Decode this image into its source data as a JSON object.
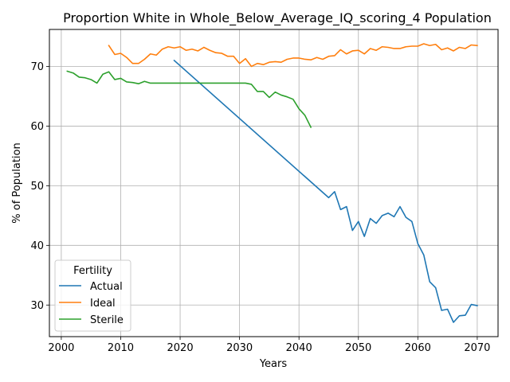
{
  "chart_data": {
    "type": "line",
    "title": "Proportion White in Whole_Below_Average_IQ_scoring_4 Population",
    "xlabel": "Years",
    "ylabel": "% of Population",
    "xlim": [
      1998,
      2073.5
    ],
    "ylim": [
      24.7,
      76.2
    ],
    "xticks": [
      2000,
      2010,
      2020,
      2030,
      2040,
      2050,
      2060,
      2070
    ],
    "yticks": [
      30,
      40,
      50,
      60,
      70
    ],
    "grid": true,
    "legend": {
      "title": "Fertility",
      "placement": "lower-left"
    },
    "series": [
      {
        "name": "Actual",
        "color": "#1f77b4",
        "x": [
          2019,
          2045,
          2046,
          2047,
          2048,
          2049,
          2050,
          2051,
          2052,
          2053,
          2054,
          2055,
          2056,
          2057,
          2058,
          2059,
          2060,
          2061,
          2062,
          2063,
          2064,
          2065,
          2066,
          2067,
          2068,
          2069,
          2070
        ],
        "y": [
          71.0,
          48.0,
          49.0,
          46.0,
          46.5,
          42.5,
          44.0,
          41.5,
          44.5,
          43.7,
          45.0,
          45.4,
          44.8,
          46.5,
          44.7,
          44.0,
          40.3,
          38.4,
          33.9,
          32.9,
          29.1,
          29.3,
          27.1,
          28.2,
          28.3,
          30.1,
          29.9
        ]
      },
      {
        "name": "Ideal",
        "color": "#ff7f0e",
        "x": [
          2008,
          2009,
          2010,
          2011,
          2012,
          2013,
          2014,
          2015,
          2016,
          2017,
          2018,
          2019,
          2020,
          2021,
          2022,
          2023,
          2024,
          2025,
          2026,
          2027,
          2028,
          2029,
          2030,
          2031,
          2032,
          2033,
          2034,
          2035,
          2036,
          2037,
          2038,
          2039,
          2040,
          2041,
          2042,
          2043,
          2044,
          2045,
          2046,
          2047,
          2048,
          2049,
          2050,
          2051,
          2052,
          2053,
          2054,
          2055,
          2056,
          2057,
          2058,
          2059,
          2060,
          2061,
          2062,
          2063,
          2064,
          2065,
          2066,
          2067,
          2068,
          2069,
          2070
        ],
        "y": [
          73.5,
          72.0,
          72.2,
          71.5,
          70.5,
          70.5,
          71.2,
          72.1,
          71.9,
          72.9,
          73.3,
          73.1,
          73.3,
          72.7,
          72.9,
          72.6,
          73.2,
          72.7,
          72.3,
          72.2,
          71.7,
          71.7,
          70.5,
          71.3,
          70.0,
          70.5,
          70.3,
          70.7,
          70.8,
          70.7,
          71.2,
          71.4,
          71.4,
          71.2,
          71.1,
          71.5,
          71.2,
          71.7,
          71.8,
          72.8,
          72.1,
          72.6,
          72.7,
          72.1,
          73.0,
          72.7,
          73.3,
          73.2,
          73.0,
          73.0,
          73.3,
          73.4,
          73.4,
          73.8,
          73.5,
          73.7,
          72.8,
          73.1,
          72.6,
          73.2,
          73.0,
          73.6,
          73.5
        ]
      },
      {
        "name": "Sterile",
        "color": "#2ca02c",
        "x": [
          2001,
          2002,
          2003,
          2004,
          2005,
          2006,
          2007,
          2008,
          2009,
          2010,
          2011,
          2012,
          2013,
          2014,
          2015,
          2016,
          2017,
          2018,
          2019,
          2020,
          2021,
          2022,
          2023,
          2024,
          2025,
          2026,
          2027,
          2028,
          2029,
          2030,
          2031,
          2032,
          2033,
          2034,
          2035,
          2036,
          2037,
          2038,
          2039,
          2040,
          2041,
          2042
        ],
        "y": [
          69.2,
          68.9,
          68.2,
          68.1,
          67.8,
          67.2,
          68.7,
          69.1,
          67.8,
          68.0,
          67.4,
          67.3,
          67.1,
          67.5,
          67.2,
          67.2,
          67.2,
          67.2,
          67.2,
          67.2,
          67.2,
          67.2,
          67.2,
          67.2,
          67.2,
          67.2,
          67.2,
          67.2,
          67.2,
          67.2,
          67.2,
          67.0,
          65.8,
          65.8,
          64.8,
          65.7,
          65.2,
          64.9,
          64.5,
          62.9,
          61.8,
          59.8
        ]
      }
    ]
  }
}
